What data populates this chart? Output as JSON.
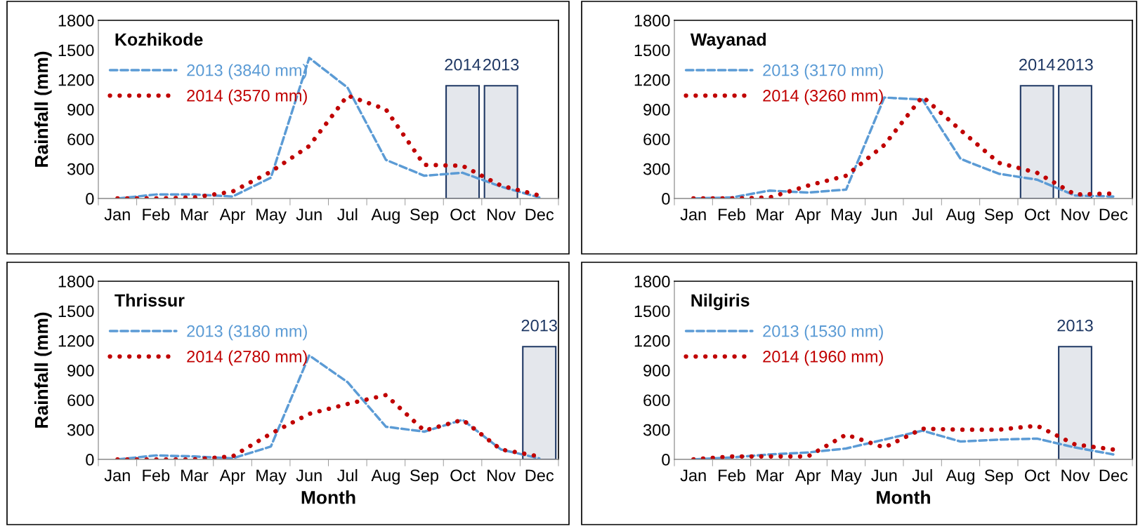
{
  "chart_data": [
    {
      "type": "line",
      "title": "Kozhikode",
      "ylabel": "Rainfall (mm)",
      "categories": [
        "Jan",
        "Feb",
        "Mar",
        "Apr",
        "May",
        "Jun",
        "Jul",
        "Aug",
        "Sep",
        "Oct",
        "Nov",
        "Dec"
      ],
      "ylim": [
        0,
        1800
      ],
      "yticks": [
        0,
        300,
        600,
        900,
        1200,
        1500,
        1800
      ],
      "legend": "top left",
      "grid": false,
      "series": [
        {
          "name": "2013 (3840 mm)",
          "color": "#5b9bd5",
          "line_style": "dashed",
          "values": [
            0,
            40,
            40,
            20,
            210,
            1420,
            1120,
            390,
            230,
            260,
            120,
            10
          ]
        },
        {
          "name": "2014 (3570 mm)",
          "color": "#c00000",
          "line_style": "dotted",
          "values": [
            0,
            0,
            10,
            70,
            270,
            530,
            1040,
            900,
            340,
            330,
            130,
            30
          ]
        }
      ],
      "bands": [
        {
          "axis": "x",
          "from": "Oct",
          "to": "Oct",
          "label": "2014",
          "color": "#1f3864"
        },
        {
          "axis": "x",
          "from": "Nov",
          "to": "Nov",
          "label": "2013",
          "color": "#1f3864"
        }
      ]
    },
    {
      "type": "line",
      "title": "Wayanad",
      "categories": [
        "Jan",
        "Feb",
        "Mar",
        "Apr",
        "May",
        "Jun",
        "Jul",
        "Aug",
        "Sep",
        "Oct",
        "Nov",
        "Dec"
      ],
      "ylim": [
        0,
        1800
      ],
      "yticks": [
        0,
        300,
        600,
        900,
        1200,
        1500,
        1800
      ],
      "legend": "top left",
      "grid": false,
      "series": [
        {
          "name": "2013 (3170 mm)",
          "color": "#5b9bd5",
          "line_style": "dashed",
          "values": [
            0,
            10,
            80,
            60,
            90,
            1020,
            1000,
            400,
            250,
            190,
            30,
            20
          ]
        },
        {
          "name": "2014 (3260 mm)",
          "color": "#c00000",
          "line_style": "dotted",
          "values": [
            0,
            0,
            10,
            130,
            230,
            540,
            1030,
            690,
            360,
            260,
            40,
            50
          ]
        }
      ],
      "bands": [
        {
          "axis": "x",
          "from": "Oct",
          "to": "Oct",
          "label": "2014",
          "color": "#1f3864"
        },
        {
          "axis": "x",
          "from": "Nov",
          "to": "Nov",
          "label": "2013",
          "color": "#1f3864"
        }
      ]
    },
    {
      "type": "line",
      "title": "Thrissur",
      "xlabel": "Month",
      "ylabel": "Rainfall (mm)",
      "categories": [
        "Jan",
        "Feb",
        "Mar",
        "Apr",
        "May",
        "Jun",
        "Jul",
        "Aug",
        "Sep",
        "Oct",
        "Nov",
        "Dec"
      ],
      "ylim": [
        0,
        1800
      ],
      "yticks": [
        0,
        300,
        600,
        900,
        1200,
        1500,
        1800
      ],
      "legend": "top left",
      "grid": false,
      "series": [
        {
          "name": "2013 (3180 mm)",
          "color": "#5b9bd5",
          "line_style": "dashed",
          "values": [
            0,
            40,
            30,
            10,
            130,
            1050,
            780,
            330,
            280,
            400,
            100,
            10
          ]
        },
        {
          "name": "2014 (2780 mm)",
          "color": "#c00000",
          "line_style": "dotted",
          "values": [
            0,
            0,
            0,
            30,
            260,
            460,
            560,
            650,
            290,
            400,
            100,
            30
          ]
        }
      ],
      "bands": [
        {
          "axis": "x",
          "from": "Dec",
          "to": "Dec",
          "label": "2013",
          "color": "#1f3864"
        }
      ]
    },
    {
      "type": "line",
      "title": "Nilgiris",
      "xlabel": "Month",
      "categories": [
        "Jan",
        "Feb",
        "Mar",
        "Apr",
        "May",
        "Jun",
        "Jul",
        "Aug",
        "Sep",
        "Oct",
        "Nov",
        "Dec"
      ],
      "ylim": [
        0,
        1800
      ],
      "yticks": [
        0,
        300,
        600,
        900,
        1200,
        1500,
        1800
      ],
      "legend": "top left",
      "grid": false,
      "series": [
        {
          "name": "2013 (1530 mm)",
          "color": "#5b9bd5",
          "line_style": "dashed",
          "values": [
            0,
            20,
            50,
            70,
            110,
            200,
            290,
            180,
            200,
            210,
            120,
            50
          ]
        },
        {
          "name": "2014 (1960 mm)",
          "color": "#c00000",
          "line_style": "dotted",
          "values": [
            0,
            30,
            30,
            30,
            250,
            120,
            310,
            300,
            300,
            340,
            150,
            100
          ]
        }
      ],
      "bands": [
        {
          "axis": "x",
          "from": "Nov",
          "to": "Nov",
          "label": "2013",
          "color": "#1f3864"
        }
      ]
    }
  ]
}
